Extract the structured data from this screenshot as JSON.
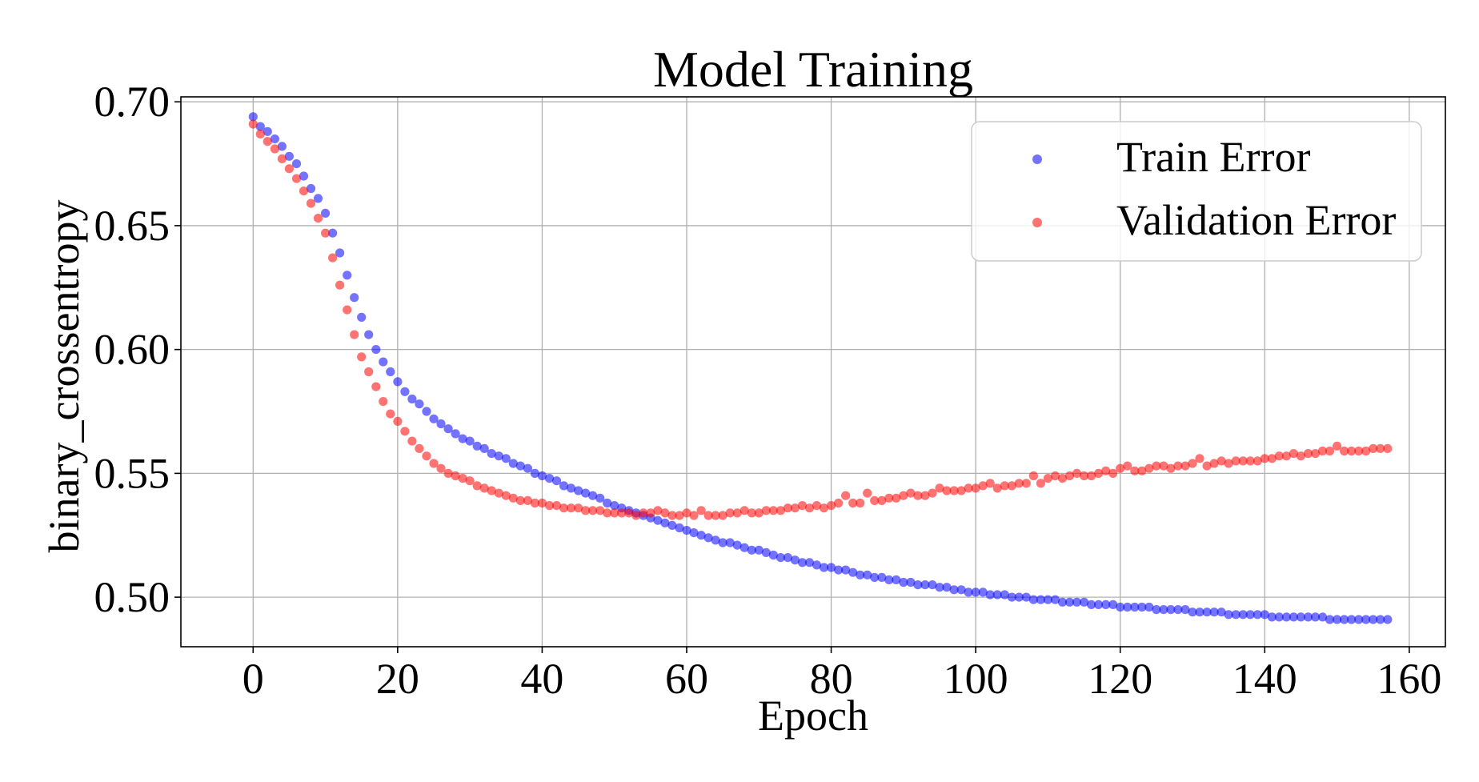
{
  "chart_data": {
    "type": "scatter",
    "title": "Model Training",
    "xlabel": "Epoch",
    "ylabel": "binary_crossentropy",
    "xlim": [
      -10,
      165
    ],
    "ylim": [
      0.48,
      0.702
    ],
    "xticks": [
      0,
      20,
      40,
      60,
      80,
      100,
      120,
      140,
      160
    ],
    "yticks": [
      0.5,
      0.55,
      0.6,
      0.65,
      0.7
    ],
    "xtick_labels": [
      "0",
      "20",
      "40",
      "60",
      "80",
      "100",
      "120",
      "140",
      "160"
    ],
    "ytick_labels": [
      "0.50",
      "0.55",
      "0.60",
      "0.65",
      "0.70"
    ],
    "grid": true,
    "legend": "top-right",
    "series": [
      {
        "name": "Train Error",
        "color": "#0000ff",
        "x": [
          0,
          1,
          2,
          3,
          4,
          5,
          6,
          7,
          8,
          9,
          10,
          11,
          12,
          13,
          14,
          15,
          16,
          17,
          18,
          19,
          20,
          21,
          22,
          23,
          24,
          25,
          26,
          27,
          28,
          29,
          30,
          31,
          32,
          33,
          34,
          35,
          36,
          37,
          38,
          39,
          40,
          41,
          42,
          43,
          44,
          45,
          46,
          47,
          48,
          49,
          50,
          51,
          52,
          53,
          54,
          55,
          56,
          57,
          58,
          59,
          60,
          61,
          62,
          63,
          64,
          65,
          66,
          67,
          68,
          69,
          70,
          71,
          72,
          73,
          74,
          75,
          76,
          77,
          78,
          79,
          80,
          81,
          82,
          83,
          84,
          85,
          86,
          87,
          88,
          89,
          90,
          91,
          92,
          93,
          94,
          95,
          96,
          97,
          98,
          99,
          100,
          101,
          102,
          103,
          104,
          105,
          106,
          107,
          108,
          109,
          110,
          111,
          112,
          113,
          114,
          115,
          116,
          117,
          118,
          119,
          120,
          121,
          122,
          123,
          124,
          125,
          126,
          127,
          128,
          129,
          130,
          131,
          132,
          133,
          134,
          135,
          136,
          137,
          138,
          139,
          140,
          141,
          142,
          143,
          144,
          145,
          146,
          147,
          148,
          149,
          150,
          151,
          152,
          153,
          154,
          155,
          156,
          157
        ],
        "y": [
          0.694,
          0.69,
          0.688,
          0.685,
          0.682,
          0.678,
          0.675,
          0.67,
          0.665,
          0.661,
          0.655,
          0.647,
          0.639,
          0.63,
          0.621,
          0.613,
          0.606,
          0.6,
          0.595,
          0.591,
          0.587,
          0.583,
          0.58,
          0.578,
          0.575,
          0.572,
          0.57,
          0.568,
          0.566,
          0.564,
          0.563,
          0.561,
          0.56,
          0.558,
          0.557,
          0.556,
          0.554,
          0.553,
          0.552,
          0.55,
          0.549,
          0.548,
          0.547,
          0.545,
          0.544,
          0.543,
          0.542,
          0.541,
          0.54,
          0.538,
          0.537,
          0.536,
          0.535,
          0.534,
          0.533,
          0.532,
          0.531,
          0.53,
          0.529,
          0.528,
          0.527,
          0.526,
          0.525,
          0.524,
          0.523,
          0.522,
          0.522,
          0.521,
          0.52,
          0.519,
          0.519,
          0.518,
          0.517,
          0.516,
          0.516,
          0.515,
          0.514,
          0.514,
          0.513,
          0.512,
          0.512,
          0.511,
          0.511,
          0.51,
          0.509,
          0.509,
          0.508,
          0.508,
          0.507,
          0.507,
          0.506,
          0.506,
          0.505,
          0.505,
          0.505,
          0.504,
          0.504,
          0.503,
          0.503,
          0.502,
          0.502,
          0.502,
          0.501,
          0.501,
          0.501,
          0.5,
          0.5,
          0.5,
          0.499,
          0.499,
          0.499,
          0.499,
          0.498,
          0.498,
          0.498,
          0.498,
          0.497,
          0.497,
          0.497,
          0.497,
          0.496,
          0.496,
          0.496,
          0.496,
          0.496,
          0.495,
          0.495,
          0.495,
          0.495,
          0.495,
          0.494,
          0.494,
          0.494,
          0.494,
          0.494,
          0.493,
          0.493,
          0.493,
          0.493,
          0.493,
          0.493,
          0.492,
          0.492,
          0.492,
          0.492,
          0.492,
          0.492,
          0.492,
          0.492,
          0.491,
          0.491,
          0.491,
          0.491,
          0.491,
          0.491,
          0.491,
          0.491,
          0.491
        ]
      },
      {
        "name": "Validation Error",
        "color": "#ff0000",
        "x": [
          0,
          1,
          2,
          3,
          4,
          5,
          6,
          7,
          8,
          9,
          10,
          11,
          12,
          13,
          14,
          15,
          16,
          17,
          18,
          19,
          20,
          21,
          22,
          23,
          24,
          25,
          26,
          27,
          28,
          29,
          30,
          31,
          32,
          33,
          34,
          35,
          36,
          37,
          38,
          39,
          40,
          41,
          42,
          43,
          44,
          45,
          46,
          47,
          48,
          49,
          50,
          51,
          52,
          53,
          54,
          55,
          56,
          57,
          58,
          59,
          60,
          61,
          62,
          63,
          64,
          65,
          66,
          67,
          68,
          69,
          70,
          71,
          72,
          73,
          74,
          75,
          76,
          77,
          78,
          79,
          80,
          81,
          82,
          83,
          84,
          85,
          86,
          87,
          88,
          89,
          90,
          91,
          92,
          93,
          94,
          95,
          96,
          97,
          98,
          99,
          100,
          101,
          102,
          103,
          104,
          105,
          106,
          107,
          108,
          109,
          110,
          111,
          112,
          113,
          114,
          115,
          116,
          117,
          118,
          119,
          120,
          121,
          122,
          123,
          124,
          125,
          126,
          127,
          128,
          129,
          130,
          131,
          132,
          133,
          134,
          135,
          136,
          137,
          138,
          139,
          140,
          141,
          142,
          143,
          144,
          145,
          146,
          147,
          148,
          149,
          150,
          151,
          152,
          153,
          154,
          155,
          156,
          157
        ],
        "y": [
          0.691,
          0.687,
          0.684,
          0.681,
          0.677,
          0.673,
          0.669,
          0.664,
          0.659,
          0.653,
          0.647,
          0.637,
          0.626,
          0.616,
          0.606,
          0.597,
          0.591,
          0.585,
          0.579,
          0.574,
          0.571,
          0.567,
          0.563,
          0.56,
          0.557,
          0.554,
          0.552,
          0.55,
          0.549,
          0.548,
          0.547,
          0.545,
          0.544,
          0.543,
          0.542,
          0.541,
          0.54,
          0.539,
          0.539,
          0.538,
          0.538,
          0.537,
          0.537,
          0.536,
          0.536,
          0.536,
          0.535,
          0.535,
          0.535,
          0.534,
          0.534,
          0.534,
          0.534,
          0.533,
          0.534,
          0.534,
          0.535,
          0.534,
          0.533,
          0.533,
          0.534,
          0.533,
          0.535,
          0.533,
          0.533,
          0.533,
          0.534,
          0.534,
          0.535,
          0.534,
          0.534,
          0.535,
          0.535,
          0.535,
          0.536,
          0.536,
          0.537,
          0.536,
          0.537,
          0.536,
          0.537,
          0.538,
          0.541,
          0.538,
          0.538,
          0.542,
          0.539,
          0.539,
          0.54,
          0.54,
          0.541,
          0.542,
          0.541,
          0.541,
          0.542,
          0.544,
          0.543,
          0.543,
          0.543,
          0.544,
          0.544,
          0.545,
          0.546,
          0.544,
          0.545,
          0.545,
          0.546,
          0.546,
          0.549,
          0.546,
          0.548,
          0.549,
          0.548,
          0.549,
          0.55,
          0.549,
          0.549,
          0.55,
          0.551,
          0.55,
          0.552,
          0.553,
          0.551,
          0.551,
          0.552,
          0.553,
          0.553,
          0.552,
          0.553,
          0.553,
          0.554,
          0.556,
          0.553,
          0.554,
          0.555,
          0.554,
          0.555,
          0.555,
          0.555,
          0.555,
          0.556,
          0.556,
          0.557,
          0.557,
          0.558,
          0.557,
          0.558,
          0.558,
          0.559,
          0.559,
          0.561,
          0.559,
          0.559,
          0.559,
          0.559,
          0.56,
          0.56,
          0.56
        ]
      }
    ]
  }
}
